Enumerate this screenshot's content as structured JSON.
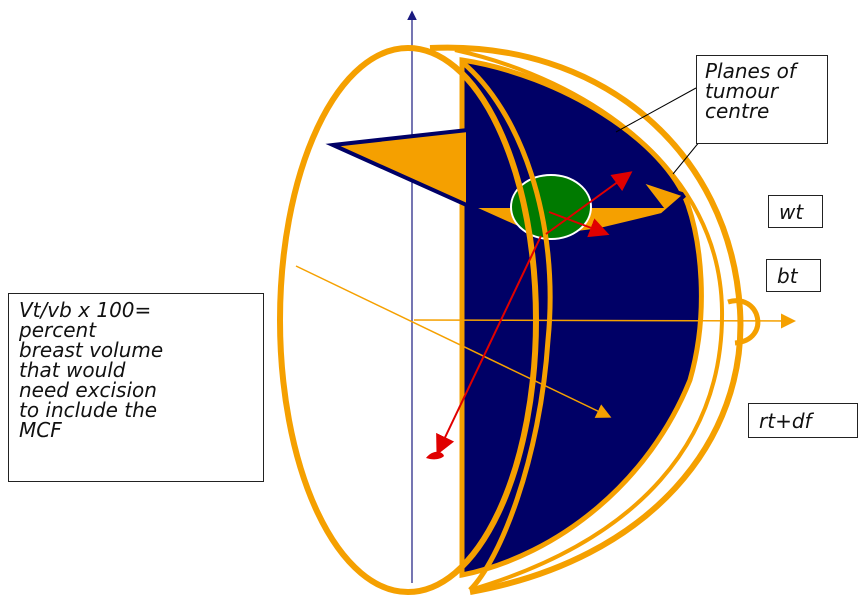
{
  "colors": {
    "orange": "#F5A000",
    "navy": "#000066",
    "green": "#007A00",
    "red": "#E00000",
    "axis": "#1a1a80"
  },
  "labels": {
    "planes_of_tumour_centre": "Planes of\ntumour\ncentre",
    "wt": "wt",
    "bt": "bt",
    "rt_df": "rt+df",
    "volume_note": "Vt/vb x 100=\npercent\nbreast volume\nthat would\nneed excision\nto include the\nMCF"
  }
}
